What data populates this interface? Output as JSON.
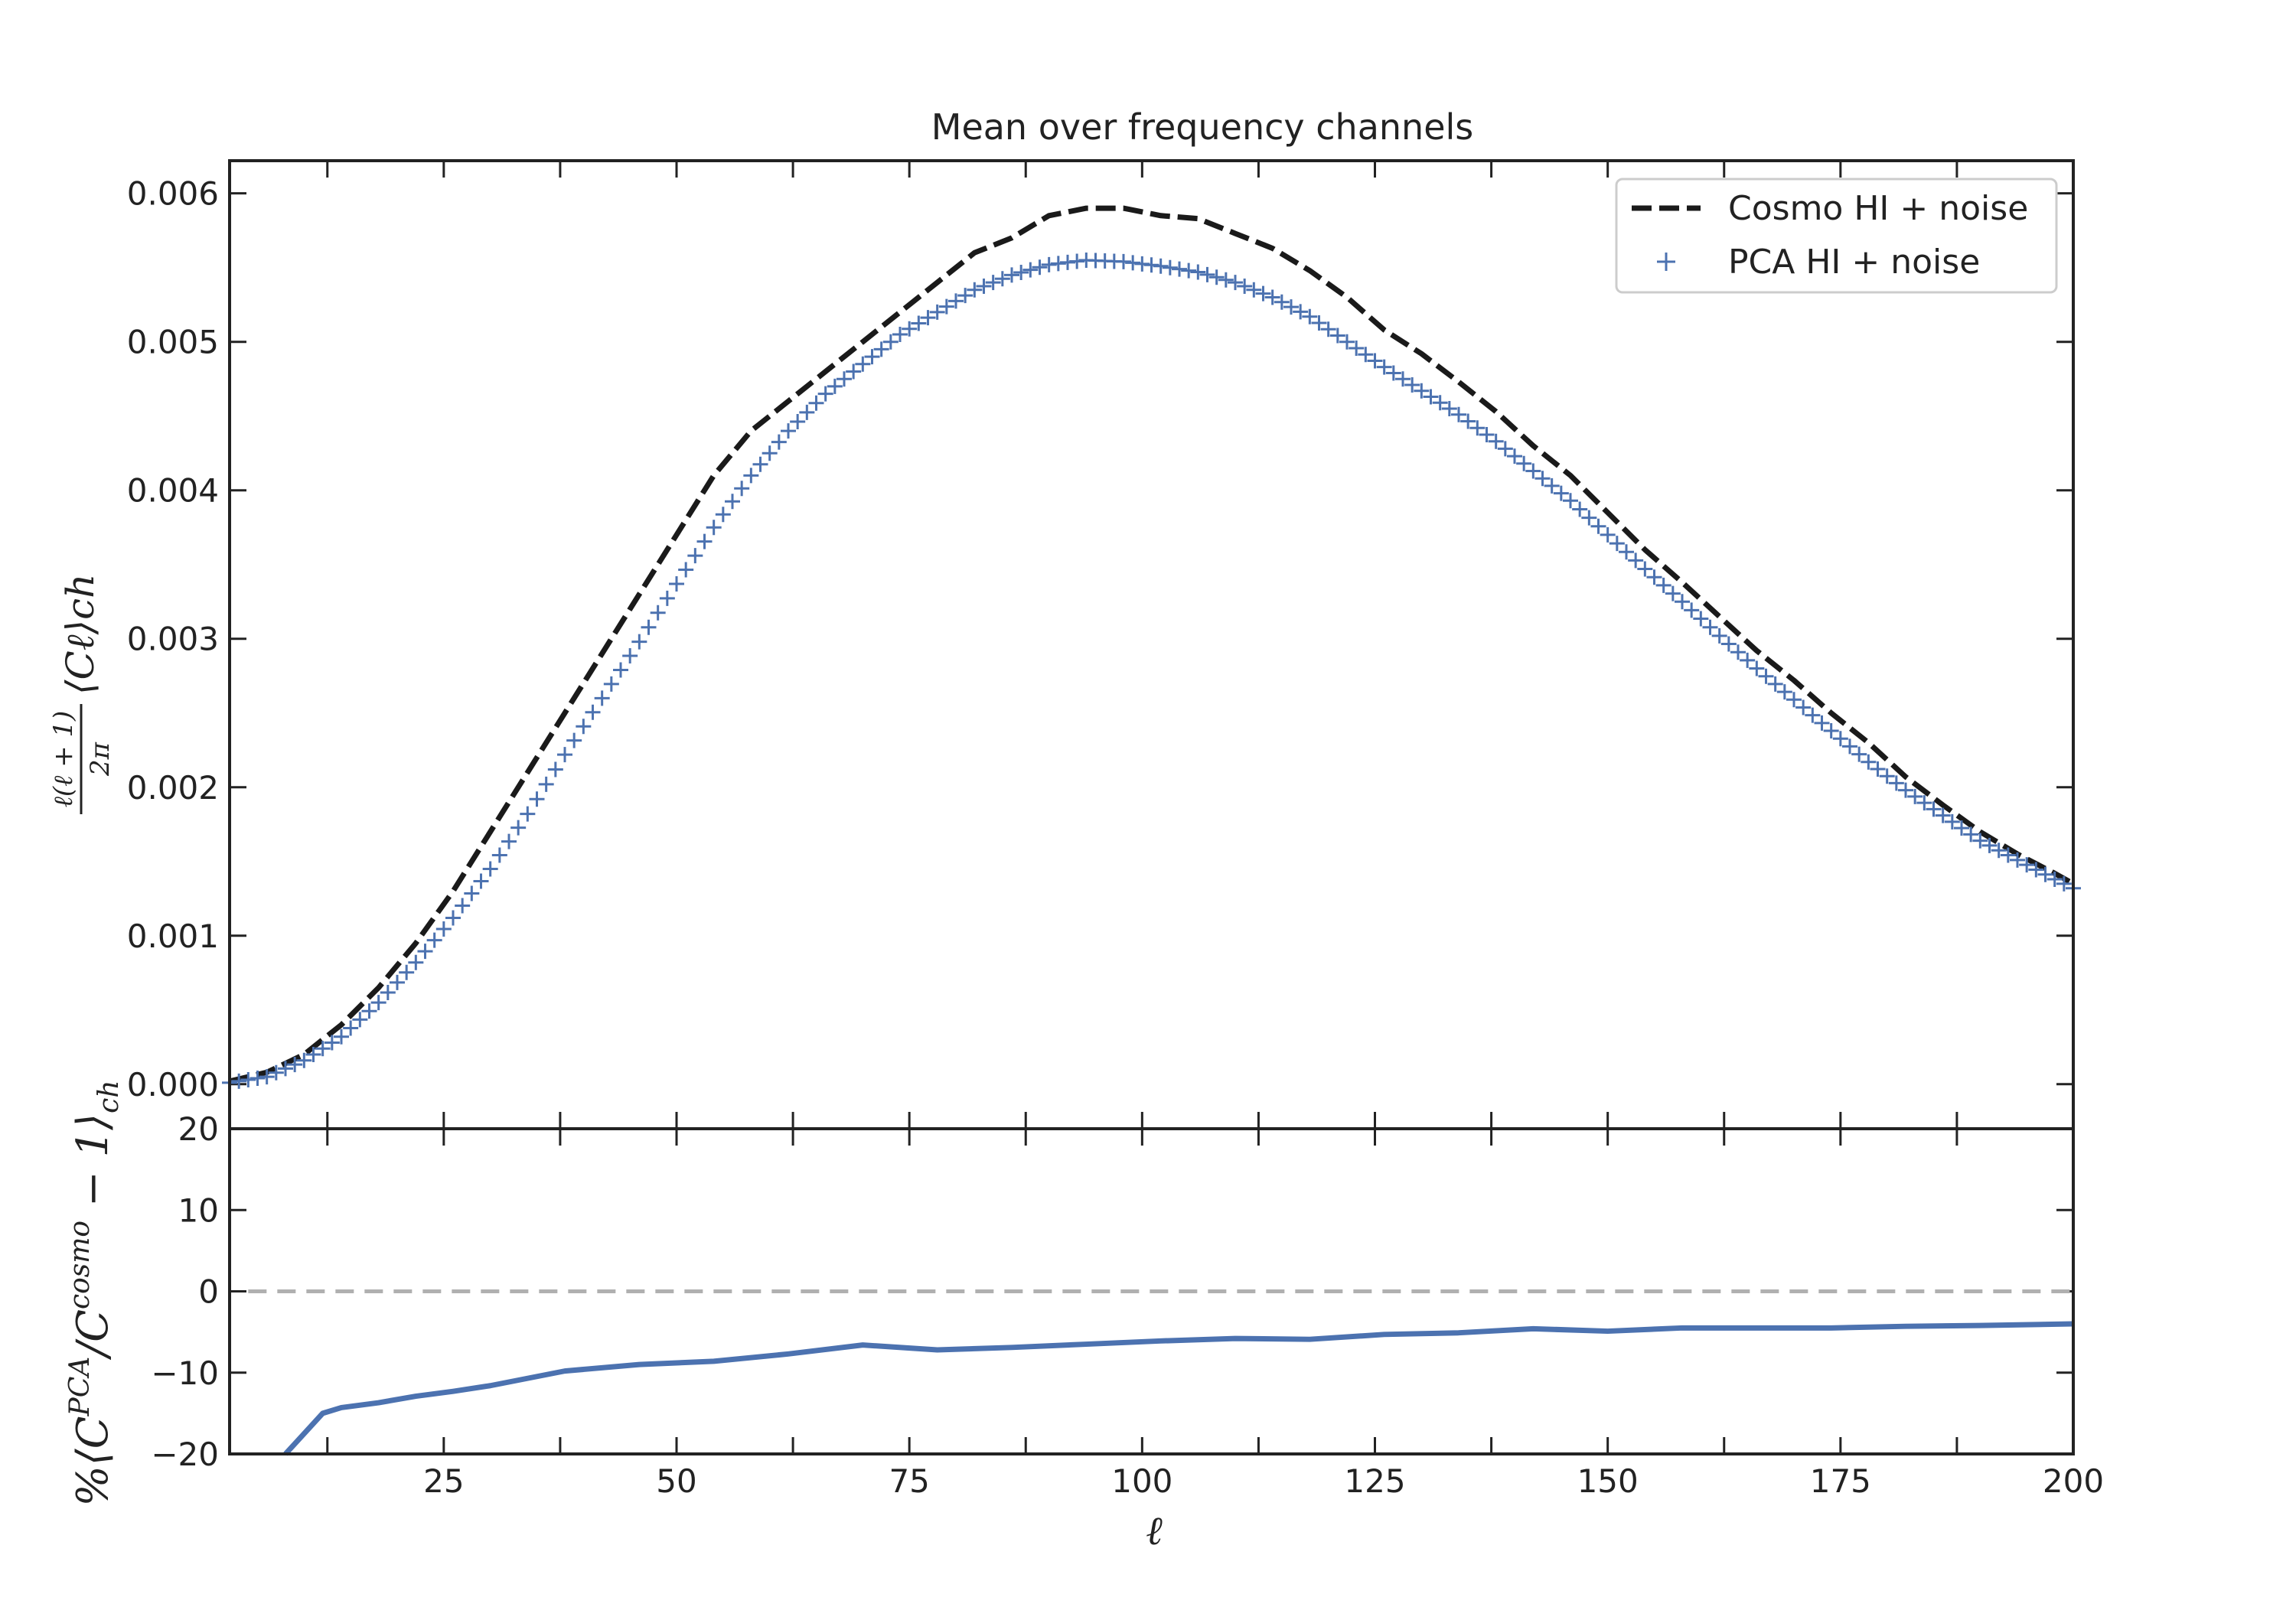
{
  "chart_data": [
    {
      "type": "line",
      "title": "Mean over frequency channels",
      "xlabel": "",
      "ylabel": "ℓ(ℓ + 1)/2π ⟨Cℓ⟩ch",
      "ylabel_fraction_num": "ℓ(ℓ + 1)",
      "ylabel_fraction_den": "2π",
      "ylabel_rest": "⟨Cℓ⟩ch",
      "xlim": [
        2,
        200
      ],
      "ylim": [
        -0.0003,
        0.00622
      ],
      "yticks": [
        "0.000",
        "0.001",
        "0.002",
        "0.003",
        "0.004",
        "0.005",
        "0.006"
      ],
      "ytick_values": [
        0,
        0.001,
        0.002,
        0.003,
        0.004,
        0.005,
        0.006
      ],
      "legend_position": "top-right",
      "series": [
        {
          "name": "Cosmo HI + noise",
          "style": "dashed",
          "color": "#1a1a1a",
          "x": [
            2,
            6,
            10,
            14,
            18,
            22,
            26,
            30,
            34,
            38,
            42,
            46,
            50,
            54,
            58,
            62,
            66,
            70,
            74,
            78,
            82,
            86,
            90,
            94,
            98,
            102,
            106,
            110,
            114,
            118,
            122,
            126,
            130,
            134,
            138,
            142,
            146,
            150,
            154,
            158,
            162,
            166,
            170,
            174,
            178,
            182,
            186,
            190,
            194,
            198,
            200
          ],
          "y": [
            2e-05,
            8e-05,
            0.0002,
            0.0004,
            0.00065,
            0.00095,
            0.0013,
            0.0017,
            0.0021,
            0.0025,
            0.0029,
            0.0033,
            0.0037,
            0.0041,
            0.0044,
            0.0046,
            0.0048,
            0.005,
            0.0052,
            0.0054,
            0.0056,
            0.0057,
            0.00585,
            0.0059,
            0.0059,
            0.00585,
            0.00583,
            0.00573,
            0.00563,
            0.00548,
            0.0053,
            0.00508,
            0.00492,
            0.00473,
            0.00453,
            0.0043,
            0.0041,
            0.00385,
            0.0036,
            0.00338,
            0.00315,
            0.00292,
            0.00272,
            0.0025,
            0.0023,
            0.00207,
            0.00188,
            0.0017,
            0.00155,
            0.00142,
            0.00135
          ]
        },
        {
          "name": "PCA HI + noise",
          "style": "plus-markers",
          "color": "#4c72b0",
          "x": [
            2,
            6,
            10,
            14,
            18,
            22,
            26,
            30,
            34,
            38,
            42,
            46,
            50,
            54,
            58,
            62,
            66,
            70,
            74,
            78,
            82,
            86,
            90,
            94,
            98,
            102,
            106,
            110,
            114,
            118,
            122,
            126,
            130,
            134,
            138,
            142,
            146,
            150,
            154,
            158,
            162,
            166,
            170,
            174,
            178,
            182,
            186,
            190,
            194,
            198,
            200
          ],
          "y": [
            1e-05,
            5e-05,
            0.00016,
            0.00032,
            0.00055,
            0.00082,
            0.00112,
            0.00145,
            0.00182,
            0.00222,
            0.0026,
            0.00298,
            0.00337,
            0.00375,
            0.0041,
            0.0044,
            0.00465,
            0.00485,
            0.00505,
            0.0052,
            0.00535,
            0.00545,
            0.00552,
            0.00555,
            0.00554,
            0.00551,
            0.00547,
            0.0054,
            0.0053,
            0.00517,
            0.005,
            0.00483,
            0.00467,
            0.00451,
            0.00433,
            0.00413,
            0.00393,
            0.0037,
            0.00347,
            0.00325,
            0.00302,
            0.0028,
            0.00259,
            0.00238,
            0.00217,
            0.00198,
            0.00181,
            0.00164,
            0.00151,
            0.00138,
            0.00132
          ]
        }
      ]
    },
    {
      "type": "line",
      "xlabel": "ℓ",
      "ylabel": "%⟨CℓPCA/Cℓcosmo − 1⟩ch",
      "ylabel_main": "%⟨C",
      "ylabel_sup1": "PCA",
      "ylabel_mid": "/C",
      "ylabel_sup2": "cosmo",
      "ylabel_tail": " − 1⟩",
      "ylabel_sub": "ch",
      "xlim": [
        2,
        200
      ],
      "ylim": [
        -20,
        20
      ],
      "xticks": [
        "25",
        "50",
        "75",
        "100",
        "125",
        "150",
        "175",
        "200"
      ],
      "xtick_values": [
        25,
        50,
        75,
        100,
        125,
        150,
        175,
        200
      ],
      "yticks": [
        "−20",
        "−10",
        "0",
        "10",
        "20"
      ],
      "ytick_values": [
        -20,
        -10,
        0,
        10,
        20
      ],
      "reference_line": {
        "y": 0,
        "style": "dashed",
        "color": "#b0b0b0"
      },
      "series": [
        {
          "color": "#4c72b0",
          "x": [
            8,
            12,
            14,
            18,
            22,
            26,
            30,
            38,
            46,
            54,
            62,
            70,
            78,
            86,
            94,
            102,
            110,
            118,
            126,
            134,
            142,
            150,
            158,
            166,
            174,
            182,
            190,
            200
          ],
          "y": [
            -20,
            -15,
            -14.3,
            -13.7,
            -12.9,
            -12.3,
            -11.6,
            -9.8,
            -9.0,
            -8.6,
            -7.7,
            -6.6,
            -7.2,
            -6.9,
            -6.5,
            -6.1,
            -5.8,
            -5.9,
            -5.3,
            -5.1,
            -4.6,
            -4.9,
            -4.5,
            -4.5,
            -4.5,
            -4.3,
            -4.2,
            -4.0
          ]
        }
      ]
    }
  ]
}
